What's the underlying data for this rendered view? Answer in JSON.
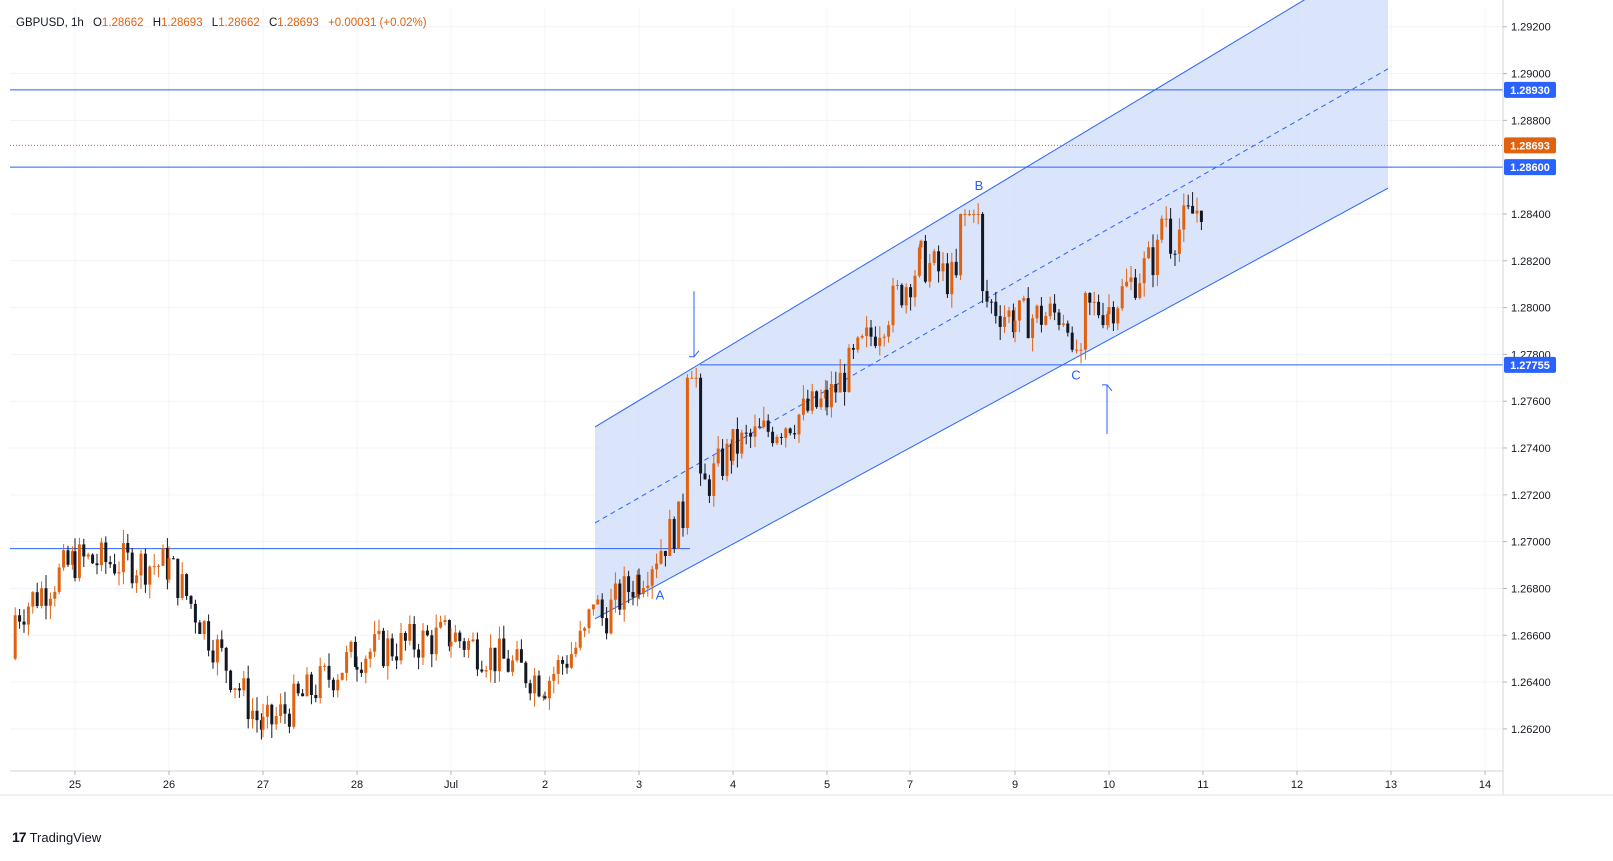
{
  "legend": {
    "symbol": "GBPUSD",
    "interval": "1h",
    "open_label": "O",
    "open": "1.28662",
    "high_label": "H",
    "high": "1.28693",
    "low_label": "L",
    "low": "1.28662",
    "close_label": "C",
    "close": "1.28693",
    "change": "+0.00031 (+0.02%)"
  },
  "brand": {
    "logo": "17",
    "name": "TradingView"
  },
  "colors": {
    "up": "#e0620f",
    "down": "#131722",
    "channel_fill": "#d4e1fb",
    "line": "#2962ff",
    "price_tag": "#e0620f",
    "grid": "#f0f3fa",
    "axis_text": "#131722"
  },
  "chart_data": {
    "type": "candlestick",
    "symbol": "GBPUSD",
    "timeframe": "1h",
    "ylim": [
      1.2602,
      1.2928
    ],
    "y_ticks": [
      "1.29200",
      "1.29000",
      "1.28800",
      "1.28400",
      "1.28200",
      "1.28000",
      "1.27800",
      "1.27600",
      "1.27400",
      "1.27200",
      "1.27000",
      "1.26800",
      "1.26600",
      "1.26400",
      "1.26200"
    ],
    "x_ticks": [
      "25",
      "26",
      "27",
      "28",
      "Jul",
      "2",
      "3",
      "4",
      "5",
      "7",
      "9",
      "10",
      "11",
      "12",
      "13",
      "14"
    ],
    "price_tags": [
      {
        "label": "1.28930",
        "value": 1.2893,
        "kind": "level"
      },
      {
        "label": "1.28693",
        "value": 1.28693,
        "kind": "last"
      },
      {
        "label": "1.28600",
        "value": 1.286,
        "kind": "level"
      },
      {
        "label": "1.27755",
        "value": 1.27755,
        "kind": "level"
      }
    ],
    "horizontal_levels": [
      1.2893,
      1.286,
      1.27755,
      1.2697
    ],
    "last_price": 1.28693,
    "annotations": [
      {
        "text": "A",
        "date": "Jul 3",
        "price": 1.2677
      },
      {
        "text": "B",
        "date": "Jul 8",
        "price": 1.2852
      },
      {
        "text": "C",
        "date": "Jul 9",
        "price": 1.2771
      }
    ],
    "arrows": [
      {
        "direction": "down",
        "date": "Jul 4",
        "price_from": 1.2807,
        "price_to": 1.2779
      },
      {
        "direction": "up",
        "date": "Jul 10",
        "price_from": 1.2746,
        "price_to": 1.2767
      }
    ],
    "channel": {
      "start_date": "Jul 2",
      "end_date": "Jul 13",
      "upper_start": 1.2749,
      "upper_end": 1.2953,
      "lower_start": 1.2667,
      "lower_end": 1.2851
    },
    "series": [
      {
        "phase": "Jun 25 - Jun 26",
        "o_h_l_c_range": [
          1.2658,
          1.2703
        ]
      },
      {
        "phase": "Jun 27",
        "o_h_l_c_range": [
          1.2613,
          1.2645
        ]
      },
      {
        "phase": "Jun 28 - Jul 1",
        "o_h_l_c_range": [
          1.2618,
          1.271
        ]
      },
      {
        "phase": "Jul 2",
        "o_h_l_c_range": [
          1.2615,
          1.265
        ]
      },
      {
        "phase": "Jul 3",
        "o_h_l_c_range": [
          1.2667,
          1.2693
        ]
      },
      {
        "phase": "Jul 4",
        "o_h_l_c_range": [
          1.2735,
          1.2777
        ]
      },
      {
        "phase": "Jul 5",
        "o_h_l_c_range": [
          1.2755,
          1.2815
        ]
      },
      {
        "phase": "Jul 8",
        "o_h_l_c_range": [
          1.2795,
          1.2845
        ]
      },
      {
        "phase": "Jul 9",
        "o_h_l_c_range": [
          1.2775,
          1.2822
        ]
      },
      {
        "phase": "Jul 10",
        "o_h_l_c_range": [
          1.278,
          1.2848
        ]
      },
      {
        "phase": "Jul 11",
        "o_h_l_c_range": [
          1.2845,
          1.28693
        ]
      }
    ]
  }
}
